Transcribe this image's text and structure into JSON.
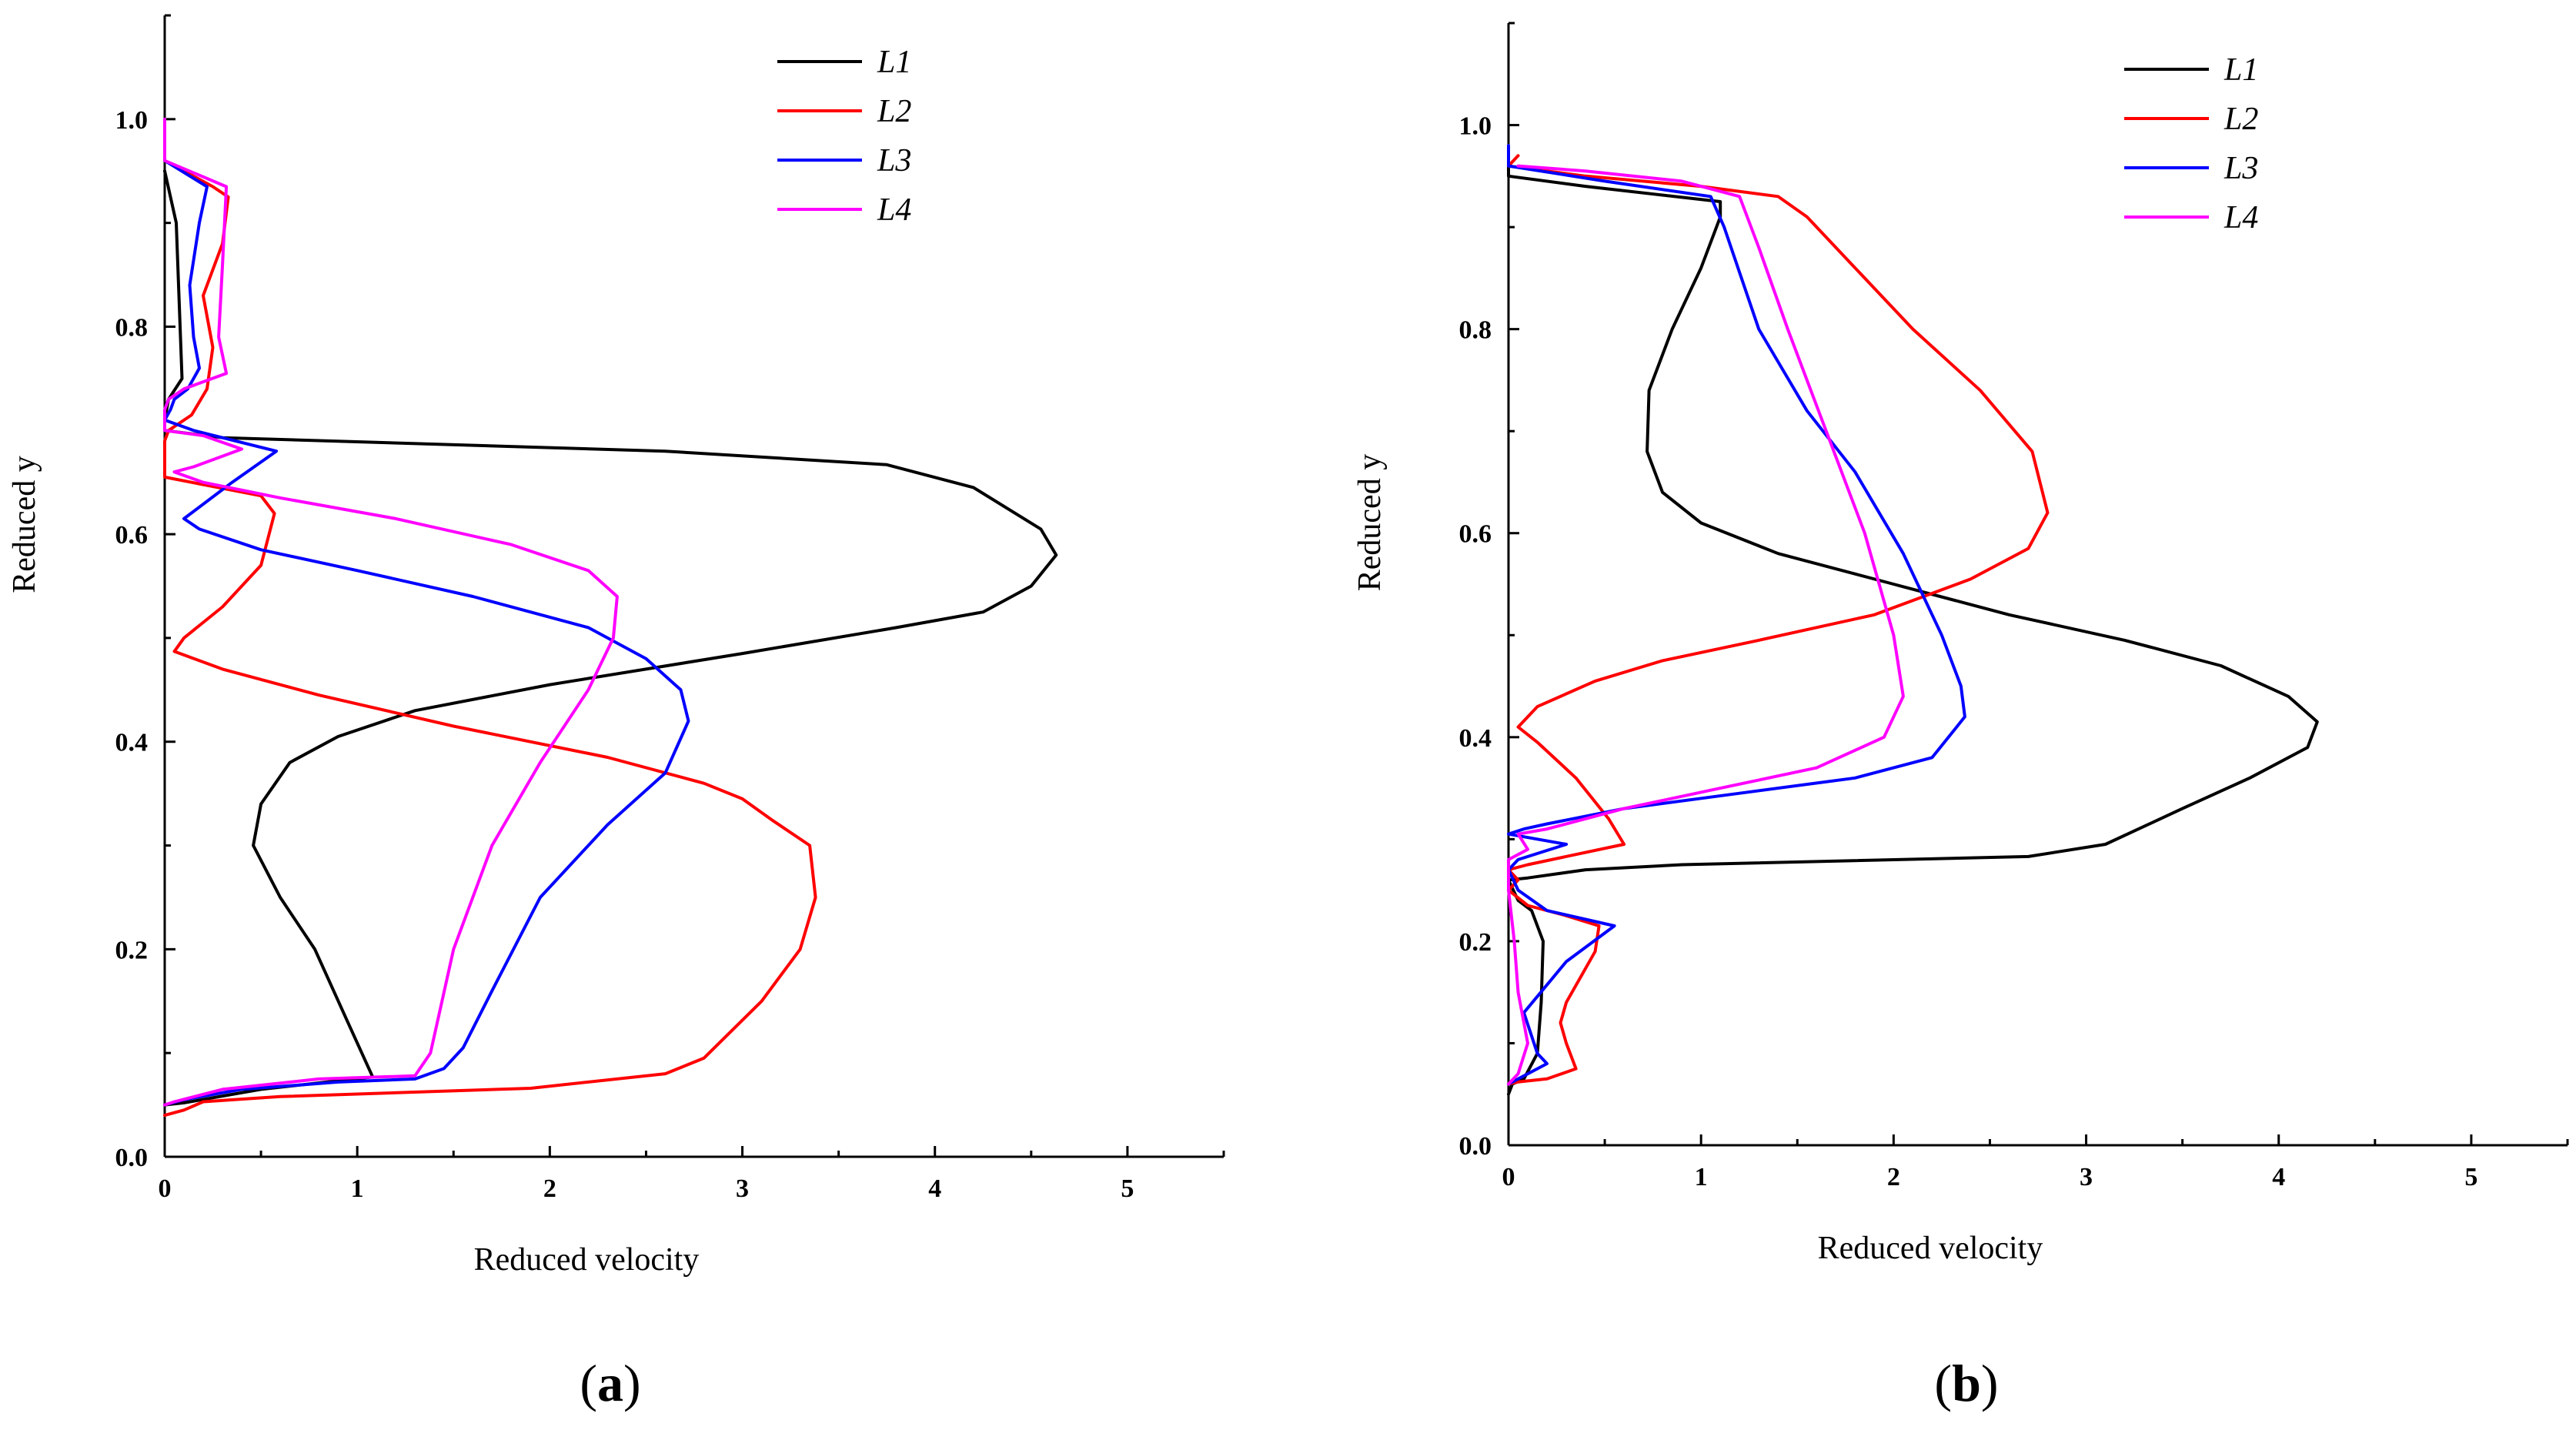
{
  "chart_data": [
    {
      "type": "line",
      "panel_label": "a",
      "xlabel": "Reduced velocity",
      "ylabel": "Reduced y",
      "xlim": [
        0,
        5.5
      ],
      "ylim": [
        0,
        1.1
      ],
      "xticks": [
        0,
        1,
        2,
        3,
        4,
        5
      ],
      "yticks": [
        0.0,
        0.2,
        0.4,
        0.6,
        0.8,
        1.0
      ],
      "xtick_labels": [
        "0",
        "1",
        "2",
        "3",
        "4",
        "5"
      ],
      "ytick_labels": [
        "0.0",
        "0.2",
        "0.4",
        "0.6",
        "0.8",
        "1.0"
      ],
      "legend_position": "top-right",
      "grid": false,
      "series": [
        {
          "name": "L1",
          "color": "#000000",
          "points": [
            [
              0,
              0.95
            ],
            [
              0.06,
              0.9
            ],
            [
              0.08,
              0.8
            ],
            [
              0.09,
              0.75
            ],
            [
              0.02,
              0.73
            ],
            [
              0.0,
              0.71
            ],
            [
              0.0,
              0.7
            ],
            [
              0.3,
              0.693
            ],
            [
              2.6,
              0.68
            ],
            [
              3.75,
              0.667
            ],
            [
              4.2,
              0.645
            ],
            [
              4.55,
              0.605
            ],
            [
              4.63,
              0.58
            ],
            [
              4.5,
              0.55
            ],
            [
              4.25,
              0.525
            ],
            [
              3.8,
              0.51
            ],
            [
              3.0,
              0.485
            ],
            [
              2.0,
              0.455
            ],
            [
              1.3,
              0.43
            ],
            [
              0.9,
              0.405
            ],
            [
              0.65,
              0.38
            ],
            [
              0.5,
              0.34
            ],
            [
              0.46,
              0.3
            ],
            [
              0.6,
              0.25
            ],
            [
              0.78,
              0.2
            ],
            [
              0.95,
              0.13
            ],
            [
              1.08,
              0.077
            ],
            [
              0.5,
              0.065
            ],
            [
              0.1,
              0.052
            ],
            [
              0.0,
              0.05
            ]
          ]
        },
        {
          "name": "L2",
          "color": "#ff0000",
          "points": [
            [
              0,
              0.96
            ],
            [
              0.25,
              0.935
            ],
            [
              0.33,
              0.925
            ],
            [
              0.3,
              0.88
            ],
            [
              0.2,
              0.83
            ],
            [
              0.25,
              0.78
            ],
            [
              0.22,
              0.74
            ],
            [
              0.14,
              0.715
            ],
            [
              0.02,
              0.7
            ],
            [
              0.0,
              0.69
            ],
            [
              0.0,
              0.655
            ],
            [
              0.5,
              0.637
            ],
            [
              0.57,
              0.62
            ],
            [
              0.5,
              0.57
            ],
            [
              0.3,
              0.53
            ],
            [
              0.1,
              0.5
            ],
            [
              0.05,
              0.487
            ],
            [
              0.3,
              0.47
            ],
            [
              0.8,
              0.445
            ],
            [
              1.5,
              0.415
            ],
            [
              2.3,
              0.385
            ],
            [
              2.8,
              0.36
            ],
            [
              3.0,
              0.345
            ],
            [
              3.15,
              0.325
            ],
            [
              3.35,
              0.3
            ],
            [
              3.38,
              0.25
            ],
            [
              3.3,
              0.2
            ],
            [
              3.1,
              0.15
            ],
            [
              2.8,
              0.095
            ],
            [
              2.6,
              0.08
            ],
            [
              1.9,
              0.066
            ],
            [
              0.6,
              0.058
            ],
            [
              0.2,
              0.053
            ],
            [
              0.1,
              0.045
            ],
            [
              0.0,
              0.04
            ]
          ]
        },
        {
          "name": "L3",
          "color": "#0000ff",
          "points": [
            [
              0,
              0.96
            ],
            [
              0.22,
              0.935
            ],
            [
              0.18,
              0.9
            ],
            [
              0.13,
              0.84
            ],
            [
              0.15,
              0.79
            ],
            [
              0.18,
              0.76
            ],
            [
              0.12,
              0.74
            ],
            [
              0.05,
              0.73
            ],
            [
              0.03,
              0.72
            ],
            [
              0.0,
              0.71
            ],
            [
              0.15,
              0.7
            ],
            [
              0.58,
              0.68
            ],
            [
              0.35,
              0.65
            ],
            [
              0.1,
              0.615
            ],
            [
              0.18,
              0.605
            ],
            [
              0.5,
              0.585
            ],
            [
              1.0,
              0.565
            ],
            [
              1.6,
              0.54
            ],
            [
              2.2,
              0.51
            ],
            [
              2.5,
              0.48
            ],
            [
              2.68,
              0.45
            ],
            [
              2.72,
              0.42
            ],
            [
              2.6,
              0.37
            ],
            [
              2.3,
              0.32
            ],
            [
              1.95,
              0.25
            ],
            [
              1.7,
              0.16
            ],
            [
              1.55,
              0.105
            ],
            [
              1.45,
              0.085
            ],
            [
              1.3,
              0.075
            ],
            [
              0.9,
              0.072
            ],
            [
              0.4,
              0.065
            ],
            [
              0.1,
              0.055
            ],
            [
              0.0,
              0.05
            ]
          ]
        },
        {
          "name": "L4",
          "color": "#ff00ff",
          "points": [
            [
              0,
              1.0
            ],
            [
              0,
              0.96
            ],
            [
              0.32,
              0.935
            ],
            [
              0.3,
              0.86
            ],
            [
              0.28,
              0.79
            ],
            [
              0.32,
              0.755
            ],
            [
              0.1,
              0.74
            ],
            [
              0.02,
              0.73
            ],
            [
              0.0,
              0.72
            ],
            [
              0.0,
              0.7
            ],
            [
              0.2,
              0.695
            ],
            [
              0.4,
              0.682
            ],
            [
              0.15,
              0.665
            ],
            [
              0.05,
              0.66
            ],
            [
              0.2,
              0.65
            ],
            [
              0.6,
              0.635
            ],
            [
              1.2,
              0.615
            ],
            [
              1.8,
              0.59
            ],
            [
              2.2,
              0.565
            ],
            [
              2.35,
              0.54
            ],
            [
              2.33,
              0.5
            ],
            [
              2.2,
              0.45
            ],
            [
              1.95,
              0.38
            ],
            [
              1.7,
              0.3
            ],
            [
              1.5,
              0.2
            ],
            [
              1.38,
              0.1
            ],
            [
              1.3,
              0.078
            ],
            [
              0.8,
              0.075
            ],
            [
              0.3,
              0.065
            ],
            [
              0.05,
              0.053
            ],
            [
              0.0,
              0.05
            ]
          ]
        }
      ]
    },
    {
      "type": "line",
      "panel_label": "b",
      "xlabel": "Reduced velocity",
      "ylabel": "Reduced y",
      "xlim": [
        0,
        5.5
      ],
      "ylim": [
        0,
        1.1
      ],
      "xticks": [
        0,
        1,
        2,
        3,
        4,
        5
      ],
      "yticks": [
        0.0,
        0.2,
        0.4,
        0.6,
        0.8,
        1.0
      ],
      "xtick_labels": [
        "0",
        "1",
        "2",
        "3",
        "4",
        "5"
      ],
      "ytick_labels": [
        "0.0",
        "0.2",
        "0.4",
        "0.6",
        "0.8",
        "1.0"
      ],
      "legend_position": "top-right",
      "grid": false,
      "series": [
        {
          "name": "L1",
          "color": "#000000",
          "points": [
            [
              0,
              0.97
            ],
            [
              0.0,
              0.95
            ],
            [
              0.4,
              0.94
            ],
            [
              1.1,
              0.925
            ],
            [
              1.1,
              0.91
            ],
            [
              1.0,
              0.86
            ],
            [
              0.85,
              0.8
            ],
            [
              0.73,
              0.74
            ],
            [
              0.72,
              0.68
            ],
            [
              0.8,
              0.64
            ],
            [
              1.0,
              0.61
            ],
            [
              1.4,
              0.58
            ],
            [
              2.0,
              0.55
            ],
            [
              2.6,
              0.52
            ],
            [
              3.2,
              0.495
            ],
            [
              3.7,
              0.47
            ],
            [
              4.05,
              0.44
            ],
            [
              4.2,
              0.415
            ],
            [
              4.15,
              0.39
            ],
            [
              3.85,
              0.36
            ],
            [
              3.5,
              0.33
            ],
            [
              3.1,
              0.295
            ],
            [
              2.7,
              0.283
            ],
            [
              0.9,
              0.275
            ],
            [
              0.4,
              0.27
            ],
            [
              0.1,
              0.262
            ],
            [
              0.0,
              0.26
            ],
            [
              0.05,
              0.24
            ],
            [
              0.12,
              0.23
            ],
            [
              0.18,
              0.2
            ],
            [
              0.17,
              0.14
            ],
            [
              0.15,
              0.09
            ],
            [
              0.08,
              0.065
            ],
            [
              0.02,
              0.06
            ],
            [
              0.0,
              0.05
            ]
          ]
        },
        {
          "name": "L2",
          "color": "#ff0000",
          "points": [
            [
              0.05,
              0.97
            ],
            [
              0.0,
              0.96
            ],
            [
              0.4,
              0.95
            ],
            [
              1.0,
              0.94
            ],
            [
              1.4,
              0.93
            ],
            [
              1.55,
              0.91
            ],
            [
              1.8,
              0.86
            ],
            [
              2.1,
              0.8
            ],
            [
              2.45,
              0.74
            ],
            [
              2.72,
              0.68
            ],
            [
              2.8,
              0.62
            ],
            [
              2.7,
              0.585
            ],
            [
              2.4,
              0.555
            ],
            [
              1.9,
              0.52
            ],
            [
              1.3,
              0.495
            ],
            [
              0.8,
              0.475
            ],
            [
              0.45,
              0.455
            ],
            [
              0.15,
              0.43
            ],
            [
              0.05,
              0.41
            ],
            [
              0.15,
              0.395
            ],
            [
              0.35,
              0.36
            ],
            [
              0.52,
              0.32
            ],
            [
              0.6,
              0.295
            ],
            [
              0.35,
              0.285
            ],
            [
              0.1,
              0.275
            ],
            [
              0.0,
              0.27
            ],
            [
              0.05,
              0.26
            ],
            [
              0.0,
              0.25
            ],
            [
              0.1,
              0.235
            ],
            [
              0.3,
              0.225
            ],
            [
              0.47,
              0.215
            ],
            [
              0.45,
              0.19
            ],
            [
              0.3,
              0.14
            ],
            [
              0.27,
              0.12
            ],
            [
              0.3,
              0.1
            ],
            [
              0.35,
              0.075
            ],
            [
              0.2,
              0.065
            ],
            [
              0.05,
              0.062
            ],
            [
              0.0,
              0.06
            ]
          ]
        },
        {
          "name": "L3",
          "color": "#0000ff",
          "points": [
            [
              0.0,
              0.98
            ],
            [
              0.0,
              0.96
            ],
            [
              0.5,
              0.945
            ],
            [
              1.05,
              0.93
            ],
            [
              1.12,
              0.9
            ],
            [
              1.3,
              0.8
            ],
            [
              1.55,
              0.72
            ],
            [
              1.8,
              0.66
            ],
            [
              2.05,
              0.58
            ],
            [
              2.25,
              0.5
            ],
            [
              2.35,
              0.45
            ],
            [
              2.37,
              0.42
            ],
            [
              2.2,
              0.38
            ],
            [
              1.8,
              0.36
            ],
            [
              1.2,
              0.345
            ],
            [
              0.6,
              0.33
            ],
            [
              0.2,
              0.315
            ],
            [
              0.08,
              0.31
            ],
            [
              0.0,
              0.305
            ],
            [
              0.3,
              0.295
            ],
            [
              0.05,
              0.28
            ],
            [
              0.0,
              0.27
            ],
            [
              0.05,
              0.25
            ],
            [
              0.2,
              0.23
            ],
            [
              0.55,
              0.215
            ],
            [
              0.3,
              0.18
            ],
            [
              0.08,
              0.13
            ],
            [
              0.15,
              0.09
            ],
            [
              0.2,
              0.08
            ],
            [
              0.05,
              0.065
            ],
            [
              0.0,
              0.06
            ]
          ]
        },
        {
          "name": "L4",
          "color": "#ff00ff",
          "points": [
            [
              0.05,
              0.96
            ],
            [
              0.4,
              0.955
            ],
            [
              0.9,
              0.945
            ],
            [
              1.2,
              0.93
            ],
            [
              1.3,
              0.88
            ],
            [
              1.45,
              0.8
            ],
            [
              1.65,
              0.7
            ],
            [
              1.85,
              0.6
            ],
            [
              2.0,
              0.5
            ],
            [
              2.05,
              0.44
            ],
            [
              1.95,
              0.4
            ],
            [
              1.6,
              0.37
            ],
            [
              1.1,
              0.35
            ],
            [
              0.6,
              0.33
            ],
            [
              0.2,
              0.31
            ],
            [
              0.05,
              0.305
            ],
            [
              0.1,
              0.29
            ],
            [
              0.0,
              0.28
            ],
            [
              0.0,
              0.25
            ],
            [
              0.03,
              0.2
            ],
            [
              0.05,
              0.15
            ],
            [
              0.1,
              0.1
            ],
            [
              0.05,
              0.07
            ],
            [
              0.0,
              0.06
            ]
          ]
        }
      ]
    }
  ]
}
